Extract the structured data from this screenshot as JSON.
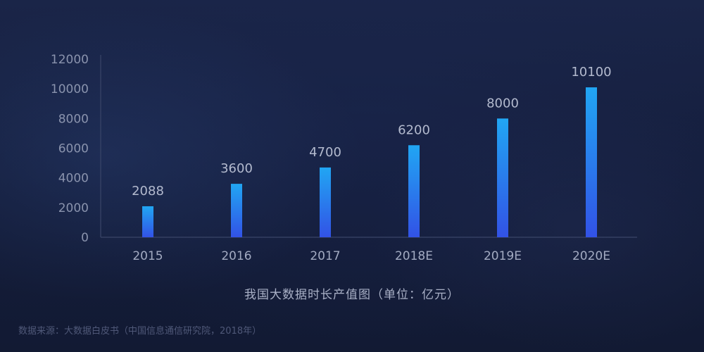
{
  "chart_data": {
    "type": "bar",
    "categories": [
      "2015",
      "2016",
      "2017",
      "2018E",
      "2019E",
      "2020E"
    ],
    "values": [
      2088,
      3600,
      4700,
      6200,
      8000,
      10100
    ],
    "value_labels": [
      "2088",
      "3600",
      "4700",
      "6200",
      "8000",
      "10100"
    ],
    "yticks": [
      "0",
      "2000",
      "4000",
      "6000",
      "8000",
      "10000",
      "12000"
    ],
    "ylim": [
      0,
      12000
    ],
    "grid": false,
    "legend": "none",
    "caption": "我国大数据时长产值图（单位：亿元）",
    "source": "数据来源：大数据白皮书（中国信息通信研究院，2018年）",
    "colors": {
      "bar_top": "#21a6f3",
      "bar_bottom": "#3252e6",
      "axis": "#3a4568"
    }
  }
}
